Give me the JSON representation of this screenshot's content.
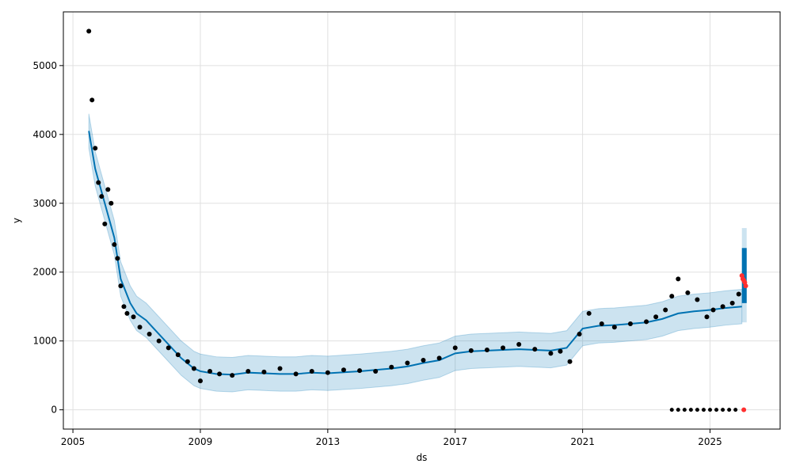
{
  "chart_data": {
    "type": "line",
    "title": "",
    "xlabel": "ds",
    "ylabel": "y",
    "xlim": [
      2004.7,
      2027.2
    ],
    "ylim": [
      -280,
      5780
    ],
    "x_ticks": [
      2005,
      2009,
      2013,
      2017,
      2021,
      2025
    ],
    "x_tick_labels": [
      "2005",
      "2009",
      "2013",
      "2017",
      "2021",
      "2025"
    ],
    "y_ticks": [
      0,
      1000,
      2000,
      3000,
      4000,
      5000
    ],
    "y_tick_labels": [
      "0",
      "1000",
      "2000",
      "3000",
      "4000",
      "5000"
    ],
    "grid": true,
    "colors": {
      "observed": "#000000",
      "forecast_line": "#0072B2",
      "uncertainty_band": "#0072B2",
      "highlight": "#ff3030",
      "grid": "#e0e0e0",
      "frame": "#000000"
    },
    "series": [
      {
        "role": "forecast",
        "x": [
          2005.5,
          2005.7,
          2006.0,
          2006.3,
          2006.5,
          2006.8,
          2007.0,
          2007.3,
          2007.6,
          2008.0,
          2008.4,
          2008.8,
          2009.0,
          2009.5,
          2010.0,
          2010.5,
          2011.0,
          2011.5,
          2012.0,
          2012.5,
          2013.0,
          2013.5,
          2014.0,
          2014.5,
          2015.0,
          2015.5,
          2016.0,
          2016.5,
          2017.0,
          2017.5,
          2018.0,
          2018.5,
          2019.0,
          2019.5,
          2020.0,
          2020.5,
          2021.0,
          2021.5,
          2022.0,
          2022.5,
          2023.0,
          2023.5,
          2024.0,
          2024.5,
          2025.0,
          2025.5,
          2026.0
        ],
        "y": [
          4050,
          3500,
          3000,
          2500,
          1900,
          1550,
          1400,
          1300,
          1150,
          950,
          750,
          600,
          560,
          520,
          510,
          540,
          530,
          520,
          520,
          540,
          530,
          545,
          560,
          580,
          600,
          630,
          680,
          720,
          820,
          850,
          860,
          870,
          880,
          870,
          860,
          900,
          1180,
          1220,
          1230,
          1250,
          1270,
          1320,
          1400,
          1430,
          1450,
          1480,
          1500
        ]
      },
      {
        "role": "forecast_band",
        "x": [
          2005.5,
          2005.7,
          2006.0,
          2006.3,
          2006.5,
          2006.8,
          2007.0,
          2007.3,
          2007.6,
          2008.0,
          2008.4,
          2008.8,
          2009.0,
          2009.5,
          2010.0,
          2010.5,
          2011.0,
          2011.5,
          2012.0,
          2012.5,
          2013.0,
          2013.5,
          2014.0,
          2014.5,
          2015.0,
          2015.5,
          2016.0,
          2016.5,
          2017.0,
          2017.5,
          2018.0,
          2018.5,
          2019.0,
          2019.5,
          2020.0,
          2020.5,
          2021.0,
          2021.5,
          2022.0,
          2022.5,
          2023.0,
          2023.5,
          2024.0,
          2024.5,
          2025.0,
          2025.5,
          2026.0
        ],
        "lower": [
          3800,
          3250,
          2750,
          2250,
          1650,
          1300,
          1150,
          1050,
          900,
          700,
          500,
          350,
          310,
          270,
          260,
          290,
          280,
          270,
          270,
          290,
          280,
          295,
          310,
          330,
          350,
          380,
          430,
          470,
          570,
          600,
          610,
          620,
          630,
          620,
          610,
          650,
          930,
          970,
          980,
          1000,
          1020,
          1070,
          1150,
          1180,
          1200,
          1230,
          1250
        ],
        "upper": [
          4300,
          3750,
          3250,
          2750,
          2150,
          1800,
          1650,
          1550,
          1400,
          1200,
          1000,
          850,
          810,
          770,
          760,
          790,
          780,
          770,
          770,
          790,
          780,
          795,
          810,
          830,
          850,
          880,
          930,
          970,
          1070,
          1100,
          1110,
          1120,
          1130,
          1120,
          1110,
          1150,
          1430,
          1470,
          1480,
          1500,
          1520,
          1570,
          1650,
          1680,
          1700,
          1730,
          1750
        ]
      },
      {
        "role": "forecast_future",
        "x": [
          2026.0,
          2026.15
        ],
        "lower": [
          1550,
          1550
        ],
        "upper": [
          2350,
          2350
        ],
        "band_lower": [
          1270,
          1270
        ],
        "band_upper": [
          2640,
          2640
        ]
      },
      {
        "role": "observed",
        "x": [
          2005.5,
          2005.6,
          2005.7,
          2005.8,
          2005.9,
          2006.0,
          2006.1,
          2006.2,
          2006.3,
          2006.4,
          2006.5,
          2006.6,
          2006.7,
          2006.9,
          2007.1,
          2007.4,
          2007.7,
          2008.0,
          2008.3,
          2008.6,
          2008.8,
          2009.0,
          2009.3,
          2009.6,
          2010.0,
          2010.5,
          2011.0,
          2011.5,
          2012.0,
          2012.5,
          2013.0,
          2013.5,
          2014.0,
          2014.5,
          2015.0,
          2015.5,
          2016.0,
          2016.5,
          2017.0,
          2017.5,
          2018.0,
          2018.5,
          2019.0,
          2019.5,
          2020.0,
          2020.3,
          2020.6,
          2020.9,
          2021.2,
          2021.6,
          2022.0,
          2022.5,
          2023.0,
          2023.3,
          2023.6,
          2023.8,
          2024.0,
          2024.3,
          2024.6,
          2024.9,
          2025.1,
          2025.4,
          2025.7,
          2025.9
        ],
        "y": [
          5500,
          4500,
          3800,
          3300,
          3100,
          2700,
          3200,
          3000,
          2400,
          2200,
          1800,
          1500,
          1400,
          1350,
          1200,
          1100,
          1000,
          900,
          800,
          700,
          600,
          420,
          560,
          520,
          500,
          560,
          550,
          600,
          520,
          560,
          540,
          580,
          570,
          560,
          620,
          680,
          720,
          750,
          900,
          860,
          870,
          900,
          950,
          880,
          820,
          850,
          700,
          1100,
          1400,
          1250,
          1200,
          1250,
          1280,
          1350,
          1450,
          1650,
          1900,
          1700,
          1600,
          1350,
          1450,
          1500,
          1550,
          1680
        ]
      },
      {
        "role": "observed_zero",
        "x": [
          2023.8,
          2024.0,
          2024.2,
          2024.4,
          2024.6,
          2024.8,
          2025.0,
          2025.2,
          2025.4,
          2025.6,
          2025.8
        ],
        "y": [
          0,
          0,
          0,
          0,
          0,
          0,
          0,
          0,
          0,
          0,
          0
        ]
      },
      {
        "role": "highlight",
        "x": [
          2026.0,
          2026.03,
          2026.06,
          2026.09,
          2026.12,
          2026.06
        ],
        "y": [
          1950,
          1900,
          1880,
          1850,
          1800,
          0
        ]
      }
    ]
  }
}
